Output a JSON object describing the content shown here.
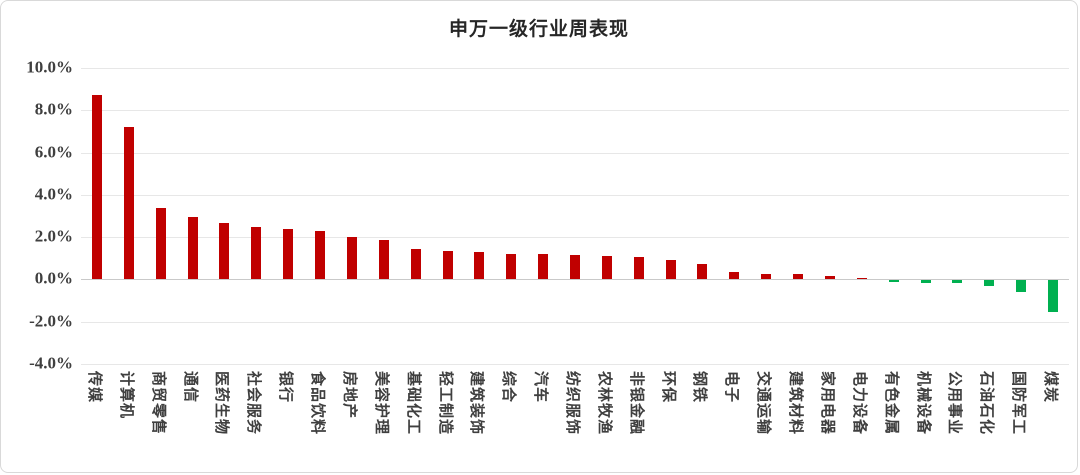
{
  "chart": {
    "title": "申万一级行业周表现"
  },
  "chart_data": {
    "type": "bar",
    "title": "申万一级行业周表现",
    "xlabel": "",
    "ylabel": "",
    "unit": "%",
    "categories": [
      "传媒",
      "计算机",
      "商贸零售",
      "通信",
      "医药生物",
      "社会服务",
      "银行",
      "食品饮料",
      "房地产",
      "美容护理",
      "基础化工",
      "轻工制造",
      "建筑装饰",
      "综合",
      "汽车",
      "纺织服饰",
      "农林牧渔",
      "非银金融",
      "环保",
      "钢铁",
      "电子",
      "交通运输",
      "建筑材料",
      "家用电器",
      "电力设备",
      "有色金属",
      "机械设备",
      "公用事业",
      "石油石化",
      "国防军工",
      "煤炭"
    ],
    "values": [
      8.7,
      7.2,
      3.4,
      2.95,
      2.65,
      2.5,
      2.4,
      2.3,
      2.0,
      1.85,
      1.45,
      1.35,
      1.3,
      1.2,
      1.18,
      1.15,
      1.1,
      1.05,
      0.9,
      0.75,
      0.33,
      0.28,
      0.27,
      0.18,
      0.09,
      -0.08,
      -0.12,
      -0.13,
      -0.25,
      -0.55,
      -1.5
    ],
    "ylim": [
      -4.0,
      10.0
    ],
    "ytick_step": 2.0,
    "yticks": [
      10,
      8,
      6,
      4,
      2,
      0,
      -2,
      -4
    ],
    "ytick_labels": [
      "10.0%",
      "8.0%",
      "6.0%",
      "4.0%",
      "2.0%",
      "0.0%",
      "-2.0%",
      "-4.0%"
    ],
    "grid": true,
    "legend_position": "none",
    "colors": {
      "positive_bar": "#c00000",
      "negative_bar": "#00b050",
      "gridline": "#e7e7e7",
      "zero_line": "#c9c9c9",
      "axis_text": "#3f3f3f",
      "title_text": "#262626",
      "frame_border": "#d9d9d9"
    }
  }
}
